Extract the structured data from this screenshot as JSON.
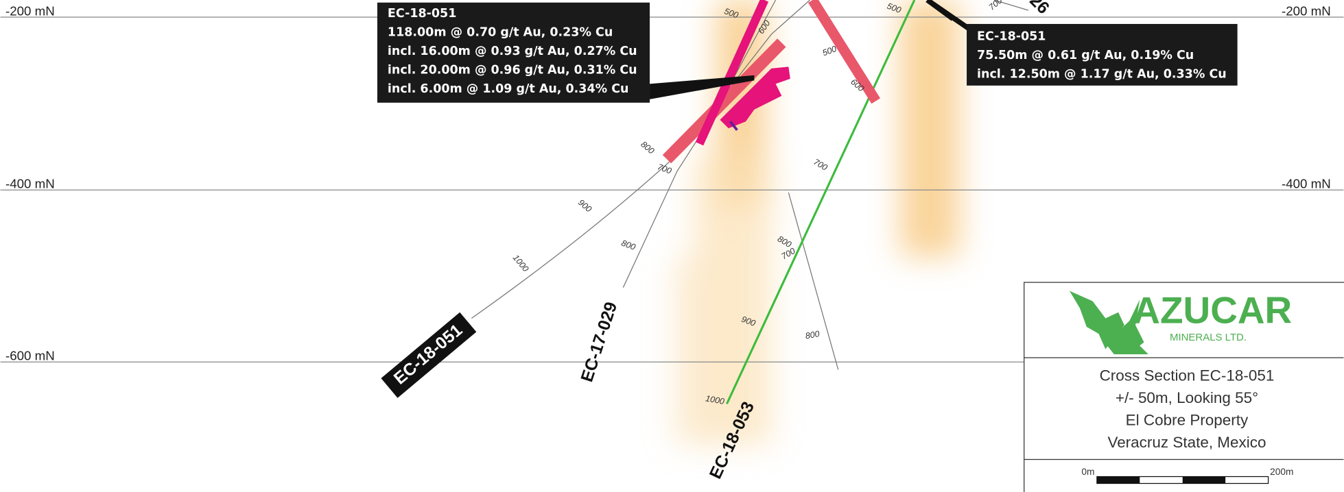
{
  "levels": [
    {
      "left": "-200 mN",
      "right": "-200 mN"
    },
    {
      "left": "-400 mN",
      "right": "-400 mN"
    },
    {
      "left": "-600 mN",
      "right": "-600 mN"
    }
  ],
  "callouts": [
    {
      "lines": [
        "EC-18-051",
        "118.00m @ 0.70 g/t Au, 0.23% Cu",
        "incl. 16.00m @ 0.93 g/t Au, 0.27% Cu",
        "incl. 20.00m @ 0.96 g/t Au, 0.31% Cu",
        "incl. 6.00m @ 1.09 g/t Au, 0.34% Cu"
      ]
    },
    {
      "lines": [
        "EC-18-051",
        "75.50m @ 0.61 g/t Au, 0.19% Cu",
        "incl. 12.50m @ 1.17 g/t Au, 0.33% Cu"
      ]
    }
  ],
  "holes": [
    "EC-18-051",
    "EC-17-029",
    "EC-18-053",
    "26"
  ],
  "depth_marks": [
    "500",
    "600",
    "500",
    "600",
    "500",
    "700",
    "800",
    "700",
    "700",
    "900",
    "800",
    "800",
    "700",
    "1000",
    "900",
    "800",
    "1000"
  ],
  "logo": {
    "name": "AZUCAR",
    "sub": "MINERALS LTD."
  },
  "title_block": [
    "Cross Section EC-18-051",
    "+/- 50m, Looking 55°",
    "El Cobre Property",
    "Veracruz State, Mexico"
  ],
  "scale": {
    "start": "0m",
    "end": "200m"
  }
}
